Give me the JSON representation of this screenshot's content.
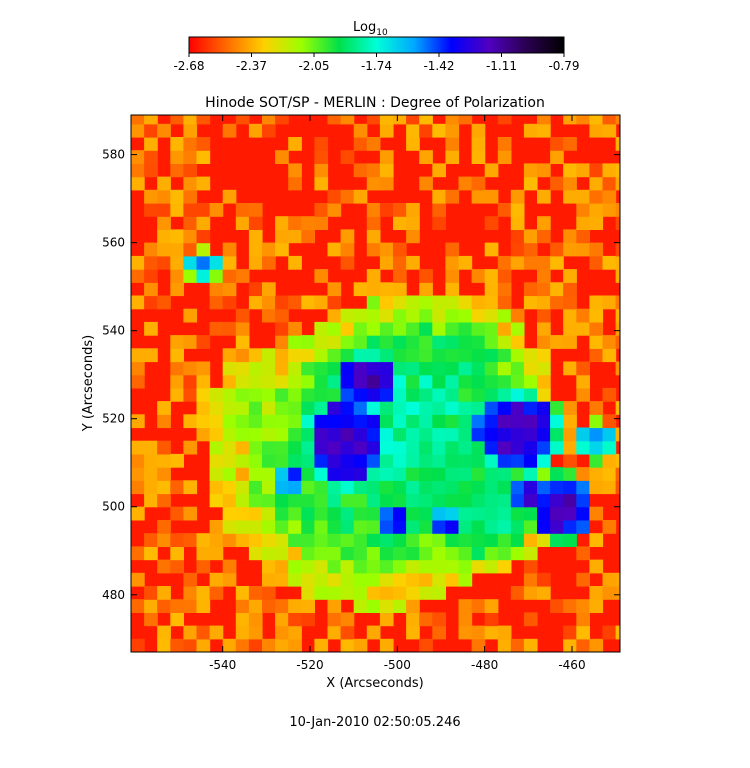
{
  "colorbar": {
    "label_base": "Log",
    "label_sub": "10",
    "ticks": [
      "-2.68",
      "-2.37",
      "-2.05",
      "-1.74",
      "-1.42",
      "-1.11",
      "-0.79"
    ],
    "stops": [
      "#ff0000",
      "#ff6a00",
      "#ffd000",
      "#9cff00",
      "#00e04a",
      "#00ffd8",
      "#00a8ff",
      "#0000ff",
      "#5000c0",
      "#2a0050",
      "#000000"
    ]
  },
  "chart_data": {
    "type": "heatmap",
    "title": "Hinode SOT/SP - MERLIN : Degree of Polarization",
    "xlabel": "X (Arcseconds)",
    "ylabel": "Y (Arcseconds)",
    "xlim": [
      -561,
      -449
    ],
    "ylim": [
      467,
      589
    ],
    "x_ticks": [
      -540,
      -520,
      -500,
      -480,
      -460
    ],
    "y_ticks": [
      480,
      500,
      520,
      540,
      560,
      580
    ],
    "x_tick_labels": [
      "-540",
      "-520",
      "-500",
      "-480",
      "-460"
    ],
    "y_tick_labels": [
      "480",
      "500",
      "520",
      "540",
      "560",
      "580"
    ],
    "value_range": [
      -2.68,
      -0.79
    ],
    "value_unit": "Log10",
    "footer": "10-Jan-2010 02:50:05.246"
  }
}
